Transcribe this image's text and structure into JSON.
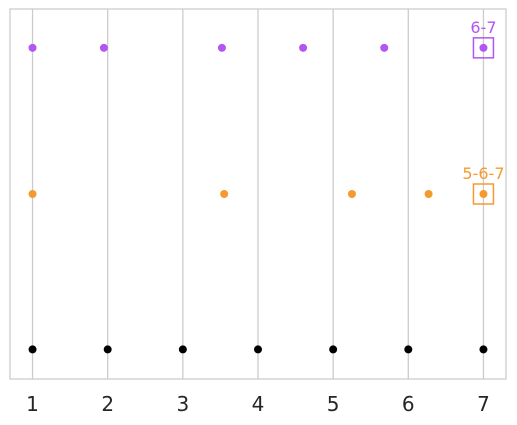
{
  "chart_data": {
    "type": "scatter",
    "xlim": [
      0.7,
      7.3
    ],
    "ylim": [
      0,
      1
    ],
    "grid": "vertical",
    "x_ticks": [
      1,
      2,
      3,
      4,
      5,
      6,
      7
    ],
    "series": [
      {
        "color": "#b355f0",
        "y": 0.895,
        "x": [
          1,
          1.95,
          3.52,
          4.6,
          5.68,
          7
        ]
      },
      {
        "color": "#f59a31",
        "y": 0.5,
        "x": [
          1,
          3.55,
          5.25,
          6.27,
          7
        ]
      },
      {
        "color": "#000000",
        "y": 0.08,
        "x": [
          1,
          2,
          3,
          4,
          5,
          6,
          7
        ]
      }
    ],
    "annotations": [
      {
        "text": "6-7",
        "x": 7,
        "y": 0.895,
        "color": "#b355f0"
      },
      {
        "text": "5-6-7",
        "x": 7,
        "y": 0.5,
        "color": "#f59a31"
      }
    ]
  }
}
